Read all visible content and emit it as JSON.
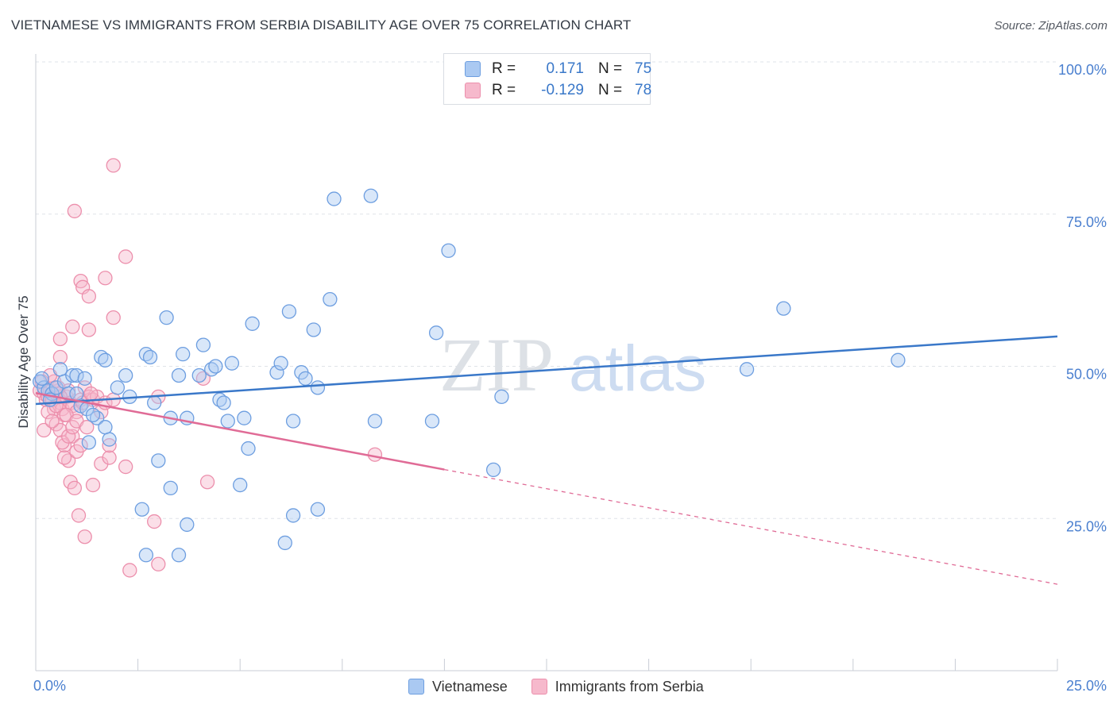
{
  "title": "VIETNAMESE VS IMMIGRANTS FROM SERBIA DISABILITY AGE OVER 75 CORRELATION CHART",
  "source": "Source: ZipAtlas.com",
  "watermark": {
    "zip": "ZIP",
    "atlas": "atlas"
  },
  "legend_top": {
    "rows": [
      {
        "r_label": "R =",
        "r_value": "0.171",
        "n_label": "N =",
        "n_value": "75"
      },
      {
        "r_label": "R =",
        "r_value": "-0.129",
        "n_label": "N =",
        "n_value": "78"
      }
    ]
  },
  "colors": {
    "vietnamese_fill": "#aac9f2",
    "vietnamese_stroke": "#6d9ee0",
    "vietnamese_line": "#3a78c9",
    "serbia_fill": "#f6b9cc",
    "serbia_stroke": "#ec8fac",
    "serbia_line": "#e06b96",
    "tick_label": "#4a7fcf",
    "grid": "#dfe3e8"
  },
  "chart_data": {
    "type": "scatter",
    "title": "VIETNAMESE VS IMMIGRANTS FROM SERBIA DISABILITY AGE OVER 75 CORRELATION CHART",
    "xlabel": "",
    "ylabel": "Disability Age Over 75",
    "xlim": [
      0,
      25
    ],
    "ylim": [
      0,
      100
    ],
    "x_ticks": [
      "0.0%",
      "25.0%"
    ],
    "y_ticks": [
      {
        "value": 25,
        "label": "25.0%"
      },
      {
        "value": 50,
        "label": "50.0%"
      },
      {
        "value": 75,
        "label": "75.0%"
      },
      {
        "value": 100,
        "label": "100.0%"
      }
    ],
    "grid": true,
    "legend_position": "bottom",
    "series": [
      {
        "name": "Vietnamese",
        "trend": {
          "x": [
            0,
            25
          ],
          "y": [
            43.8,
            54.9
          ],
          "dashed_from": null
        },
        "points": [
          [
            0.1,
            47.5
          ],
          [
            0.2,
            46.5
          ],
          [
            0.3,
            46
          ],
          [
            0.4,
            45.5
          ],
          [
            0.5,
            46.5
          ],
          [
            0.6,
            49.5
          ],
          [
            0.7,
            47.5
          ],
          [
            0.8,
            45.5
          ],
          [
            0.9,
            48.5
          ],
          [
            1.0,
            48.5
          ],
          [
            1.1,
            43.5
          ],
          [
            1.2,
            48
          ],
          [
            1.25,
            43
          ],
          [
            1.3,
            37.5
          ],
          [
            1.6,
            51.5
          ],
          [
            1.7,
            51
          ],
          [
            1.8,
            38
          ],
          [
            1.5,
            41.5
          ],
          [
            1.7,
            40
          ],
          [
            2.0,
            46.5
          ],
          [
            2.2,
            48.5
          ],
          [
            2.3,
            45
          ],
          [
            2.7,
            52
          ],
          [
            2.8,
            51.5
          ],
          [
            2.9,
            44
          ],
          [
            3.2,
            58
          ],
          [
            3.3,
            41.5
          ],
          [
            3.5,
            48.5
          ],
          [
            3.6,
            52
          ],
          [
            3.7,
            41.5
          ],
          [
            4.0,
            48.5
          ],
          [
            4.1,
            53.5
          ],
          [
            4.3,
            49.5
          ],
          [
            4.4,
            50
          ],
          [
            4.5,
            44.5
          ],
          [
            4.6,
            44
          ],
          [
            4.7,
            41
          ],
          [
            4.8,
            50.5
          ],
          [
            5.1,
            41.5
          ],
          [
            5.3,
            57
          ],
          [
            5.9,
            49
          ],
          [
            6.0,
            50.5
          ],
          [
            6.2,
            59
          ],
          [
            6.3,
            41
          ],
          [
            6.5,
            49
          ],
          [
            6.6,
            48
          ],
          [
            6.8,
            56
          ],
          [
            6.9,
            46.5
          ],
          [
            7.2,
            61
          ],
          [
            7.3,
            77.5
          ],
          [
            8.2,
            78
          ],
          [
            8.3,
            41
          ],
          [
            9.7,
            41
          ],
          [
            9.8,
            55.5
          ],
          [
            10.1,
            69
          ],
          [
            11.2,
            33
          ],
          [
            11.4,
            45
          ],
          [
            17.4,
            49.5
          ],
          [
            18.3,
            59.5
          ],
          [
            21.1,
            51
          ],
          [
            3.0,
            34.5
          ],
          [
            3.3,
            30
          ],
          [
            2.6,
            26.5
          ],
          [
            2.7,
            19
          ],
          [
            3.5,
            19
          ],
          [
            3.7,
            24
          ],
          [
            5.0,
            30.5
          ],
          [
            5.2,
            36.5
          ],
          [
            6.1,
            21
          ],
          [
            6.3,
            25.5
          ],
          [
            6.9,
            26.5
          ],
          [
            0.15,
            48
          ],
          [
            0.35,
            44.5
          ],
          [
            1.0,
            45.5
          ],
          [
            1.4,
            42
          ]
        ]
      },
      {
        "name": "Immigrants from Serbia",
        "trend": {
          "x": [
            0,
            25
          ],
          "y": [
            45.6,
            14.2
          ],
          "dashed_from": 10
        },
        "points": [
          [
            0.1,
            46
          ],
          [
            0.2,
            45.5
          ],
          [
            0.25,
            44.5
          ],
          [
            0.3,
            45
          ],
          [
            0.35,
            46
          ],
          [
            0.4,
            44.5
          ],
          [
            0.45,
            43
          ],
          [
            0.5,
            45.5
          ],
          [
            0.55,
            46
          ],
          [
            0.6,
            44
          ],
          [
            0.65,
            43
          ],
          [
            0.7,
            42
          ],
          [
            0.75,
            45
          ],
          [
            0.8,
            46
          ],
          [
            0.85,
            44
          ],
          [
            0.9,
            43.5
          ],
          [
            1.0,
            42.5
          ],
          [
            1.1,
            44.5
          ],
          [
            1.2,
            46.5
          ],
          [
            1.3,
            45
          ],
          [
            0.6,
            51.5
          ],
          [
            0.6,
            54.5
          ],
          [
            0.9,
            56.5
          ],
          [
            1.3,
            56
          ],
          [
            1.1,
            64
          ],
          [
            1.15,
            63
          ],
          [
            1.3,
            61.5
          ],
          [
            1.7,
            64.5
          ],
          [
            1.9,
            58
          ],
          [
            2.2,
            68
          ],
          [
            1.9,
            83
          ],
          [
            0.95,
            75.5
          ],
          [
            0.5,
            40.5
          ],
          [
            0.6,
            39.5
          ],
          [
            0.7,
            37
          ],
          [
            0.8,
            34.5
          ],
          [
            0.9,
            38.5
          ],
          [
            1.0,
            36
          ],
          [
            1.1,
            37
          ],
          [
            0.85,
            31
          ],
          [
            0.95,
            30
          ],
          [
            1.05,
            25.5
          ],
          [
            1.2,
            22
          ],
          [
            1.4,
            30.5
          ],
          [
            1.6,
            34
          ],
          [
            2.2,
            33.5
          ],
          [
            2.3,
            16.5
          ],
          [
            2.9,
            24.5
          ],
          [
            3.0,
            17.5
          ],
          [
            3.0,
            45
          ],
          [
            1.8,
            35
          ],
          [
            4.1,
            48
          ],
          [
            4.2,
            31
          ],
          [
            8.3,
            35.5
          ],
          [
            0.2,
            39.5
          ],
          [
            0.3,
            42.5
          ],
          [
            0.4,
            41
          ],
          [
            0.5,
            43.5
          ],
          [
            0.6,
            45
          ],
          [
            0.65,
            37.5
          ],
          [
            0.7,
            35
          ],
          [
            0.75,
            42
          ],
          [
            0.8,
            38.5
          ],
          [
            0.9,
            40
          ],
          [
            1.0,
            41
          ],
          [
            1.15,
            44
          ],
          [
            1.25,
            40
          ],
          [
            1.4,
            44.5
          ],
          [
            1.5,
            45
          ],
          [
            1.6,
            42.5
          ],
          [
            1.7,
            44
          ],
          [
            1.8,
            37
          ],
          [
            0.55,
            46.5
          ],
          [
            0.45,
            47.5
          ],
          [
            0.35,
            48.5
          ],
          [
            0.15,
            47.5
          ],
          [
            1.35,
            45.5
          ],
          [
            1.9,
            44.5
          ]
        ]
      }
    ]
  },
  "legend_bottom": [
    {
      "label": "Vietnamese"
    },
    {
      "label": "Immigrants from Serbia"
    }
  ]
}
